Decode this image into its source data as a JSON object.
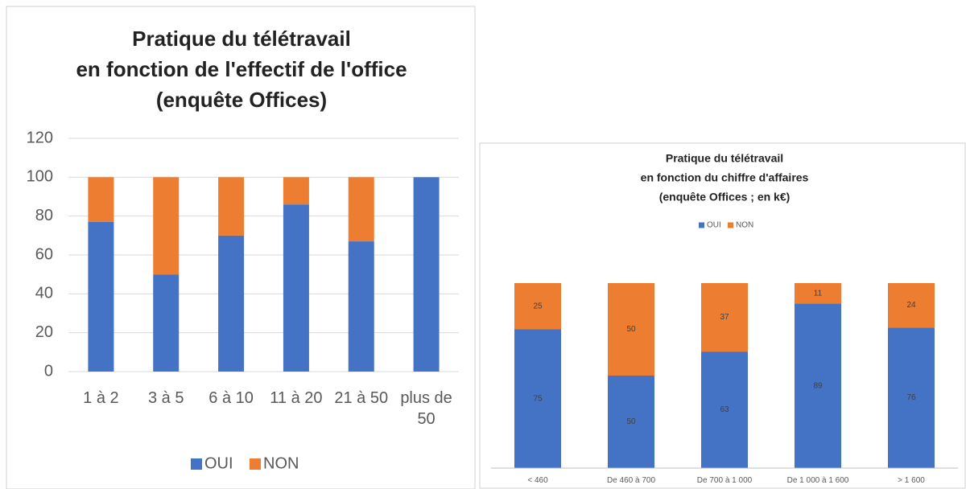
{
  "chart_data": [
    {
      "type": "stacked_bar",
      "title": [
        "Pratique du télétravail",
        "en fonction de l'effectif de l'office",
        "(enquête Offices)"
      ],
      "categories": [
        "1 à 2",
        "3 à 5",
        "6 à 10",
        "11 à 20",
        "21 à 50",
        "plus de 50"
      ],
      "series": [
        {
          "name": "OUI",
          "color": "#4472c4",
          "values": [
            77,
            50,
            70,
            86,
            67,
            100
          ]
        },
        {
          "name": "NON",
          "color": "#ed7d31",
          "values": [
            23,
            50,
            30,
            14,
            33,
            0
          ]
        }
      ],
      "ylim": [
        0,
        120
      ],
      "yticks": [
        0,
        20,
        40,
        60,
        80,
        100,
        120
      ],
      "grid": true,
      "legend": "bottom"
    },
    {
      "type": "stacked_bar",
      "title": [
        "Pratique du télétravail",
        "en fonction du chiffre d'affaires",
        "(enquête Offices ; en k€)"
      ],
      "categories": [
        "< 460",
        "De 460 à 700",
        "De 700 à 1 000",
        "De 1 000 à 1 600",
        "> 1 600"
      ],
      "series": [
        {
          "name": "OUI",
          "color": "#4472c4",
          "values": [
            75,
            50,
            63,
            89,
            76
          ]
        },
        {
          "name": "NON",
          "color": "#ed7d31",
          "values": [
            25,
            50,
            37,
            11,
            24
          ]
        }
      ],
      "ylim": [
        0,
        100
      ],
      "grid": false,
      "legend": "top",
      "data_labels": true
    }
  ]
}
